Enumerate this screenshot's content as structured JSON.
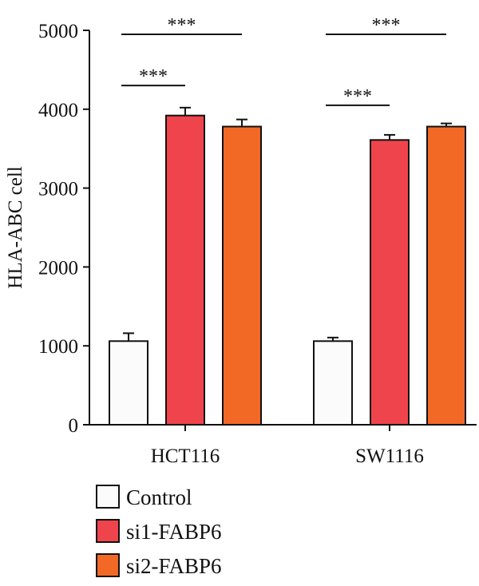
{
  "chart_data": {
    "type": "bar",
    "title": "",
    "xlabel": "",
    "ylabel": "HLA-ABC cell",
    "ylim": [
      0,
      5000
    ],
    "yticks": [
      0,
      1000,
      2000,
      3000,
      4000,
      5000
    ],
    "grid": false,
    "legend_position": "bottom-left",
    "categories": [
      "HCT116",
      "SW1116"
    ],
    "series": [
      {
        "name": "Control",
        "color": "#fbfbfb",
        "values": [
          1060,
          1060
        ],
        "errors": [
          100,
          45
        ]
      },
      {
        "name": "si1-FABP6",
        "color": "#f0444c",
        "values": [
          3920,
          3610
        ],
        "errors": [
          100,
          65
        ]
      },
      {
        "name": "si2-FABP6",
        "color": "#f26926",
        "values": [
          3780,
          3780
        ],
        "errors": [
          90,
          40
        ]
      }
    ],
    "significance": [
      {
        "category": 0,
        "from_series": 0,
        "to_series": 1,
        "label": "***",
        "level": 4300
      },
      {
        "category": 0,
        "from_series": 0,
        "to_series": 2,
        "label": "***",
        "level": 4950
      },
      {
        "category": 1,
        "from_series": 0,
        "to_series": 1,
        "label": "***",
        "level": 4050
      },
      {
        "category": 1,
        "from_series": 0,
        "to_series": 2,
        "label": "***",
        "level": 4950
      }
    ]
  }
}
